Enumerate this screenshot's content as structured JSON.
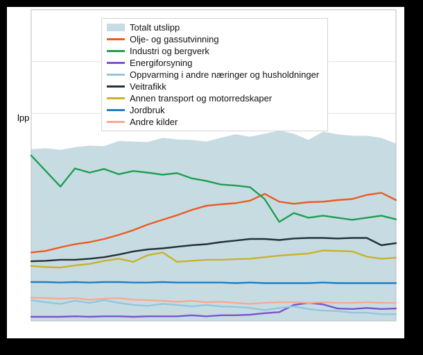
{
  "window": {
    "background_color": "#000000",
    "plot_background_color": "#ffffff"
  },
  "axis": {
    "partial_label": "lpp"
  },
  "chart_data": {
    "type": "line",
    "title": "",
    "n_points": 26,
    "ylim": [
      0,
      60
    ],
    "grid": true,
    "grid_color": "#d6d6d6",
    "frame_color": "#bbbbbb",
    "legend_position": "top-center-overlay",
    "x_tick_labels_visible": false,
    "y_tick_labels_visible": false,
    "series": [
      {
        "id": "totalt-utslipp",
        "name": "Totalt utslipp",
        "type": "area",
        "color": "#c7dce2",
        "values": [
          33.1,
          33.3,
          33.0,
          33.5,
          33.8,
          33.7,
          34.7,
          34.6,
          34.5,
          35.3,
          35.0,
          34.9,
          34.6,
          35.3,
          36.0,
          35.5,
          36.1,
          36.7,
          36.1,
          34.9,
          36.5,
          36.0,
          35.7,
          35.7,
          35.3,
          34.2
        ]
      },
      {
        "id": "olje-og-gassutvinning",
        "name": "Olje- og gassutvinning",
        "type": "line",
        "color": "#ed5a1e",
        "values": [
          13.2,
          13.5,
          14.2,
          14.8,
          15.2,
          15.8,
          16.6,
          17.5,
          18.6,
          19.5,
          20.4,
          21.4,
          22.2,
          22.5,
          22.7,
          23.2,
          24.5,
          23.0,
          22.6,
          22.9,
          23.0,
          23.3,
          23.5,
          24.3,
          24.7,
          23.3
        ]
      },
      {
        "id": "industri-og-bergverk",
        "name": "Industri og bergverk",
        "type": "line",
        "color": "#1d9e50",
        "values": [
          31.9,
          28.9,
          25.9,
          29.4,
          28.6,
          29.3,
          28.3,
          28.9,
          28.6,
          28.2,
          28.5,
          27.5,
          27.0,
          26.3,
          26.1,
          25.8,
          23.5,
          19.1,
          20.8,
          19.9,
          20.3,
          19.9,
          19.5,
          19.9,
          20.3,
          19.6
        ]
      },
      {
        "id": "energiforsyning",
        "name": "Energiforsyning",
        "type": "line",
        "color": "#7b52d1",
        "values": [
          0.8,
          0.8,
          0.8,
          0.9,
          0.8,
          0.9,
          0.9,
          0.8,
          0.9,
          0.9,
          0.9,
          1.1,
          0.9,
          1.1,
          1.1,
          1.2,
          1.5,
          1.7,
          3.1,
          3.5,
          3.2,
          2.4,
          2.3,
          2.5,
          2.3,
          2.4
        ]
      },
      {
        "id": "oppvarming-andre-naeringer-husholdninger",
        "name": "Oppvarming i andre næringer og husholdninger",
        "type": "line",
        "color": "#93c6dc",
        "values": [
          4.0,
          3.6,
          3.3,
          3.9,
          3.5,
          4.0,
          3.5,
          3.1,
          2.9,
          3.3,
          3.1,
          2.8,
          3.1,
          2.8,
          2.7,
          2.5,
          2.1,
          2.5,
          2.8,
          2.3,
          2.0,
          1.9,
          1.6,
          1.6,
          1.3,
          1.3
        ]
      },
      {
        "id": "veitrafikk",
        "name": "Veitrafikk",
        "type": "line",
        "color": "#243038",
        "values": [
          11.5,
          11.6,
          11.8,
          11.8,
          12.0,
          12.3,
          12.8,
          13.4,
          13.8,
          14.0,
          14.3,
          14.6,
          14.8,
          15.2,
          15.5,
          15.8,
          15.8,
          15.6,
          15.9,
          16.0,
          16.0,
          15.9,
          16.0,
          16.0,
          14.6,
          15.0
        ]
      },
      {
        "id": "annen-transport-og-motorredskaper",
        "name": "Annen transport og motorredskaper",
        "type": "line",
        "color": "#c9b226",
        "values": [
          10.6,
          10.4,
          10.3,
          10.7,
          11.0,
          11.6,
          12.0,
          11.4,
          12.7,
          13.2,
          11.4,
          11.6,
          11.8,
          11.8,
          11.9,
          12.0,
          12.3,
          12.6,
          12.8,
          13.0,
          13.6,
          13.5,
          13.4,
          12.4,
          12.0,
          12.2
        ]
      },
      {
        "id": "jordbruk",
        "name": "Jordbruk",
        "type": "line",
        "color": "#1f7ec2",
        "values": [
          7.5,
          7.5,
          7.4,
          7.5,
          7.4,
          7.5,
          7.5,
          7.4,
          7.4,
          7.5,
          7.4,
          7.4,
          7.4,
          7.4,
          7.3,
          7.4,
          7.3,
          7.3,
          7.3,
          7.3,
          7.4,
          7.3,
          7.3,
          7.3,
          7.3,
          7.3
        ]
      },
      {
        "id": "andre-kilder",
        "name": "Andre kilder",
        "type": "line",
        "color": "#f8a98e",
        "values": [
          4.5,
          4.4,
          4.3,
          4.4,
          4.1,
          4.3,
          4.4,
          4.1,
          4.0,
          3.9,
          3.7,
          3.9,
          3.6,
          3.7,
          3.5,
          3.3,
          3.5,
          3.6,
          3.6,
          3.5,
          3.6,
          3.5,
          3.5,
          3.6,
          3.5,
          3.5
        ]
      }
    ]
  }
}
